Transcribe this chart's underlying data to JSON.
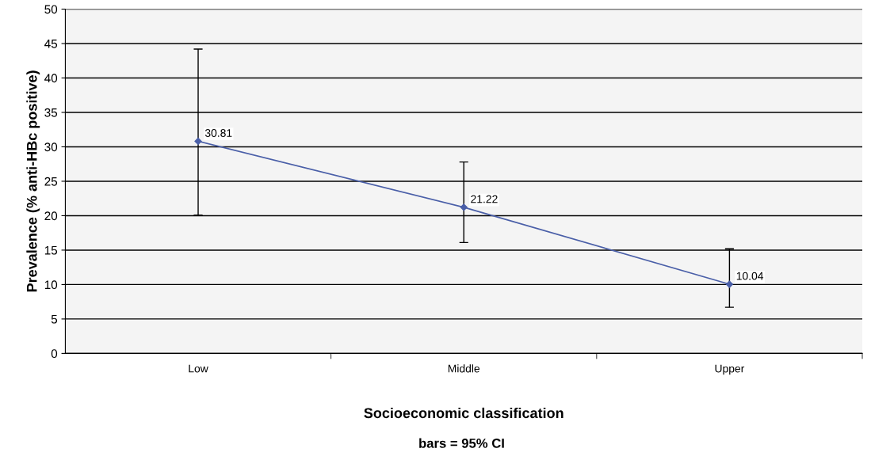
{
  "chart_data": {
    "type": "line",
    "xlabel": "Socioeconomic classification",
    "ylabel": "Prevalence (% anti-HBc positive)",
    "annotations": [
      "bars = 95% CI"
    ],
    "categories": [
      "Low",
      "Middle",
      "Upper"
    ],
    "series": [
      {
        "color": "#4a5fa8",
        "values": [
          30.81,
          21.22,
          10.04
        ],
        "errors": [
          [
            20.1,
            44.2
          ],
          [
            16.1,
            27.8
          ],
          [
            6.7,
            15.2
          ]
        ]
      }
    ],
    "data_labels": true,
    "marker": "diamond",
    "grid": "y",
    "legend": false,
    "ylim": [
      0,
      50
    ],
    "yticks": [
      0,
      5,
      10,
      15,
      20,
      25,
      30,
      35,
      40,
      45,
      50
    ]
  }
}
